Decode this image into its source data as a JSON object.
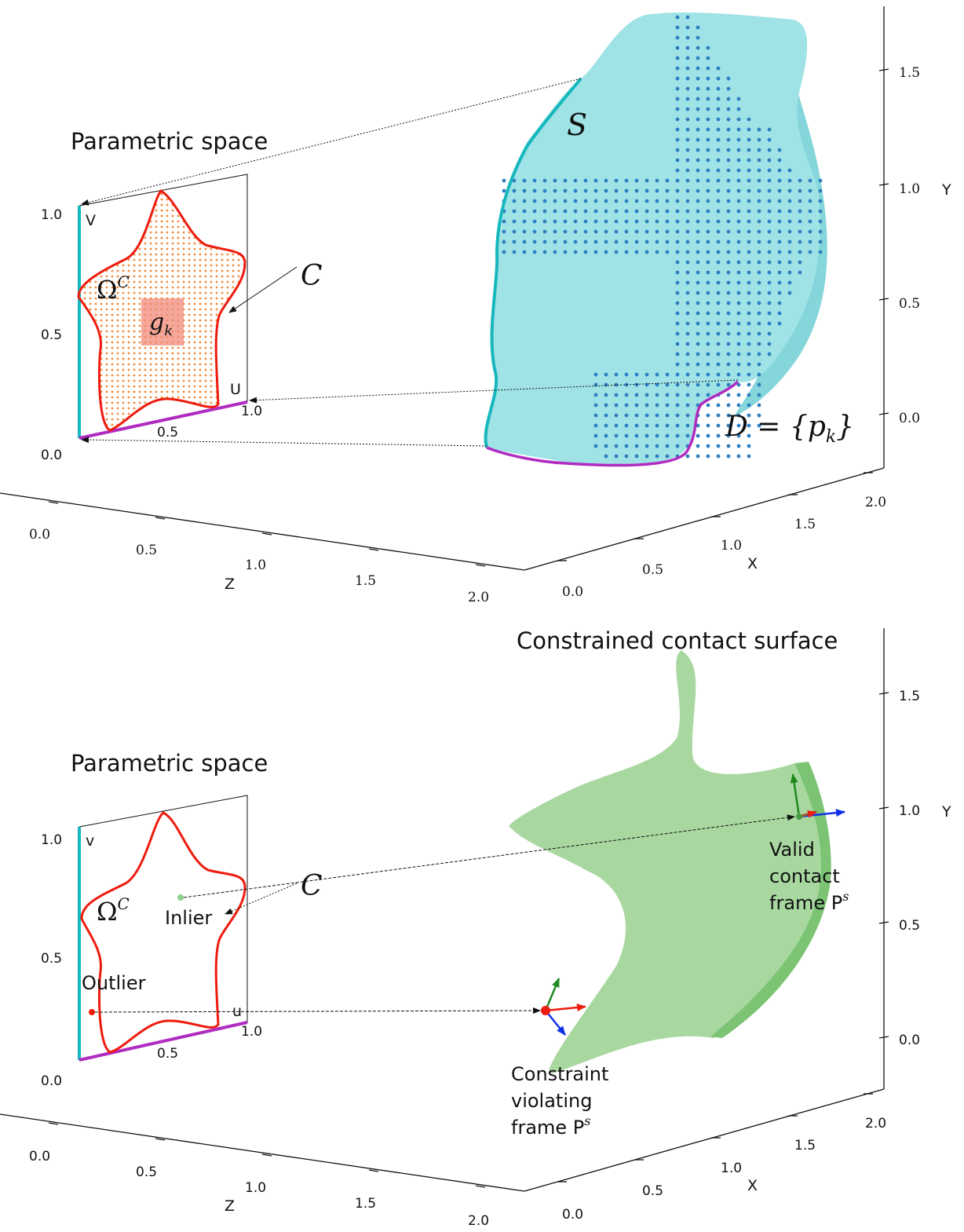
{
  "top_panel": {
    "title": "Parametric space",
    "v_label": "V",
    "u_label": "U",
    "param_ticks": {
      "v": [
        "1.0",
        "0.5",
        "0.0"
      ],
      "u": [
        "0.5",
        "1.0"
      ]
    },
    "omega_label": "Ω",
    "omega_sup": "C",
    "curve_label": "C",
    "cell_label": "g",
    "cell_sub": "k",
    "surface_label": "S",
    "dataset_label": "D = {p",
    "dataset_sub": "k",
    "dataset_close": "}",
    "y_ticks": [
      "1.5",
      "1.0",
      "0.5",
      "0.0"
    ],
    "y_label": "Y",
    "z_ticks": [
      "0.0",
      "0.5",
      "1.0",
      "1.5",
      "2.0"
    ],
    "z_label": "Z",
    "x_ticks": [
      "0.0",
      "0.5",
      "1.0",
      "1.5",
      "2.0"
    ],
    "x_label": "X",
    "colors": {
      "surface": "#9fe3e6",
      "boundary_v": "#16b8bd",
      "boundary_u": "#b02cc0",
      "curve": "#ee1c0f",
      "samples": "#f08a3a",
      "points": "#2f7fc0"
    }
  },
  "bottom_panel": {
    "title": "Parametric space",
    "surface_title": "Constrained contact surface",
    "v_label": "v",
    "u_label": "u",
    "param_ticks": {
      "v": [
        "1.0",
        "0.5",
        "0.0"
      ],
      "u": [
        "0.5",
        "1.0"
      ]
    },
    "omega_label": "Ω",
    "omega_sup": "C",
    "curve_label": "C",
    "inlier_label": "Inlier",
    "outlier_label": "Outlier",
    "valid_lines": [
      "Valid",
      "contact",
      "frame P"
    ],
    "valid_sup": "s",
    "violating_lines": [
      "Constraint",
      "violating",
      "frame P"
    ],
    "violating_sup": "s",
    "y_ticks": [
      "1.5",
      "1.0",
      "0.5",
      "0.0"
    ],
    "y_label": "Y",
    "z_ticks": [
      "0.0",
      "0.5",
      "1.0",
      "1.5",
      "2.0"
    ],
    "z_label": "Z",
    "x_ticks": [
      "0.0",
      "0.5",
      "1.0",
      "1.5",
      "2.0"
    ],
    "x_label": "X",
    "colors": {
      "surface": "#a8d8a0",
      "surface_dark": "#7cc474",
      "inlier": "#8fd18a",
      "outlier": "#ee1c0f",
      "arrow_x": "#ee1c0f",
      "arrow_y": "#1f8a1f",
      "arrow_z": "#1030e8"
    }
  }
}
